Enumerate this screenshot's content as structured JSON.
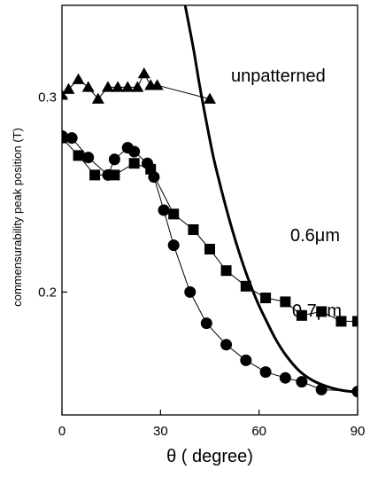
{
  "chart_data": {
    "type": "scatter",
    "xlabel": "θ ( degree)",
    "ylabel": "commensurability peak position (T)",
    "xlim": [
      0,
      90
    ],
    "ylim": [
      0.137,
      0.347
    ],
    "xticks": [
      0,
      30,
      60,
      90
    ],
    "xtick_labels": [
      "0",
      "30",
      "60",
      "90"
    ],
    "yticks": [
      0.2,
      0.3
    ],
    "ytick_labels": [
      "0.2",
      "0.3"
    ],
    "grid": false,
    "annotations": [
      {
        "text": "unpatterned",
        "series": "unpatterned"
      },
      {
        "text": "0.6μm",
        "series": "0.6μm"
      },
      {
        "text": "0.7μm",
        "series": "0.7μm"
      }
    ],
    "series": [
      {
        "name": "unpatterned",
        "marker": "triangle",
        "line": "thin",
        "x": [
          0,
          2,
          5,
          8,
          11,
          14,
          17,
          20,
          23,
          25,
          27,
          29,
          45
        ],
        "y": [
          0.301,
          0.304,
          0.309,
          0.305,
          0.299,
          0.305,
          0.305,
          0.305,
          0.305,
          0.312,
          0.306,
          0.306,
          0.299
        ]
      },
      {
        "name": "0.6μm",
        "marker": "square",
        "line": "thin",
        "x": [
          0,
          5,
          10,
          16,
          22,
          27,
          34,
          40,
          45,
          50,
          56,
          62,
          68,
          73,
          79,
          85,
          90
        ],
        "y": [
          0.279,
          0.27,
          0.26,
          0.26,
          0.266,
          0.263,
          0.24,
          0.232,
          0.222,
          0.211,
          0.203,
          0.197,
          0.195,
          0.188,
          0.19,
          0.185,
          0.185
        ]
      },
      {
        "name": "0.7μm",
        "marker": "circle",
        "line": "thin",
        "x": [
          0,
          3,
          8,
          14,
          16,
          20,
          22,
          26,
          28,
          31,
          34,
          39,
          44,
          50,
          56,
          62,
          68,
          73,
          79,
          90
        ],
        "y": [
          0.28,
          0.279,
          0.269,
          0.26,
          0.268,
          0.274,
          0.272,
          0.266,
          0.259,
          0.242,
          0.224,
          0.2,
          0.184,
          0.173,
          0.165,
          0.159,
          0.156,
          0.154,
          0.15,
          0.149
        ]
      },
      {
        "name": "",
        "marker": "none",
        "line": "thick",
        "x": [
          37.5,
          40,
          42,
          44,
          46,
          48,
          50,
          52,
          54,
          56,
          58,
          60,
          62,
          65,
          68,
          72,
          76,
          80,
          84,
          88,
          90
        ],
        "y": [
          0.347,
          0.325,
          0.305,
          0.287,
          0.27,
          0.256,
          0.243,
          0.231,
          0.22,
          0.21,
          0.201,
          0.193,
          0.186,
          0.176,
          0.168,
          0.16,
          0.155,
          0.152,
          0.15,
          0.149,
          0.149
        ]
      }
    ]
  }
}
